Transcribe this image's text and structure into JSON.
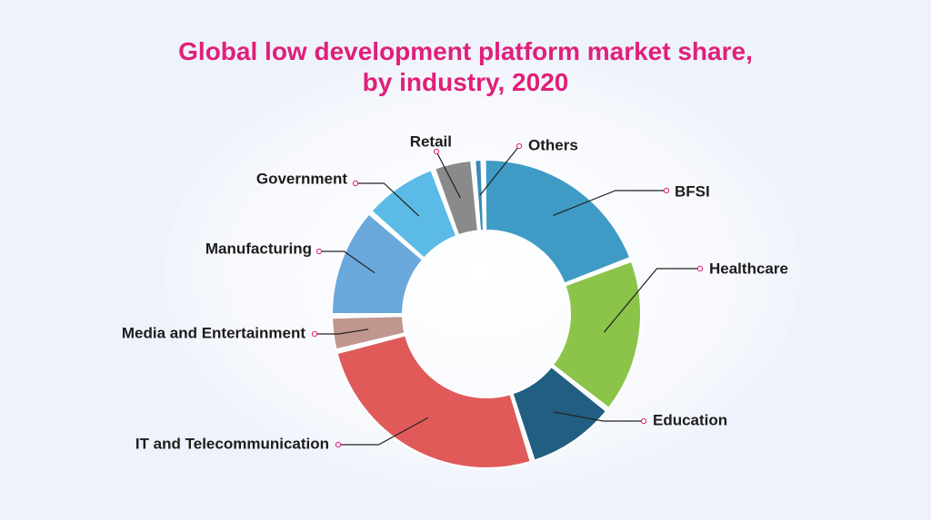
{
  "title_line1": "Global low development platform market share,",
  "title_line2": "by industry, 2020",
  "chart_data": {
    "type": "pie",
    "variant": "donut",
    "title": "Global low development platform market share, by industry, 2020",
    "categories": [
      "Others",
      "BFSI",
      "Healthcare",
      "Education",
      "IT and Telecommunication",
      "Media and Entertainment",
      "Manufacturing",
      "Government",
      "Retail"
    ],
    "values": [
      1.0,
      18.5,
      15.5,
      9.0,
      24.5,
      3.5,
      11.0,
      7.5,
      4.0
    ],
    "unit": "%",
    "colors": [
      "#3a8ab5",
      "#3f9bc6",
      "#8cc44a",
      "#215e82",
      "#e05a5a",
      "#bf978f",
      "#6aa8dc",
      "#5bbbe6",
      "#8a8a8a"
    ],
    "legend": "callout labels"
  }
}
